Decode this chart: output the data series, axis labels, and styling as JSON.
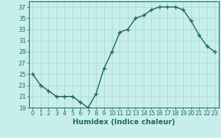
{
  "x": [
    0,
    1,
    2,
    3,
    4,
    5,
    6,
    7,
    8,
    9,
    10,
    11,
    12,
    13,
    14,
    15,
    16,
    17,
    18,
    19,
    20,
    21,
    22,
    23
  ],
  "y": [
    25,
    23,
    22,
    21,
    21,
    21,
    20,
    19,
    21.5,
    26,
    29,
    32.5,
    33,
    35,
    35.5,
    36.5,
    37,
    37,
    37,
    36.5,
    34.5,
    32,
    30,
    29
  ],
  "line_color": "#1a6b5a",
  "marker": "+",
  "marker_color": "#1a6b5a",
  "bg_color": "#c8eeec",
  "grid_color": "#aad8d4",
  "xlabel": "Humidex (Indice chaleur)",
  "ylim": [
    19,
    38
  ],
  "xlim": [
    -0.5,
    23.5
  ],
  "yticks": [
    19,
    21,
    23,
    25,
    27,
    29,
    31,
    33,
    35,
    37
  ],
  "xtick_labels": [
    "0",
    "1",
    "2",
    "3",
    "4",
    "5",
    "6",
    "7",
    "8",
    "9",
    "10",
    "11",
    "12",
    "13",
    "14",
    "15",
    "16",
    "17",
    "18",
    "19",
    "20",
    "21",
    "22",
    "23"
  ],
  "tick_color": "#1a6b5a",
  "label_color": "#1a6b5a",
  "axis_color": "#1a6b5a",
  "xlabel_fontsize": 7.5,
  "tick_fontsize": 6,
  "linewidth": 1.1,
  "markersize": 4
}
